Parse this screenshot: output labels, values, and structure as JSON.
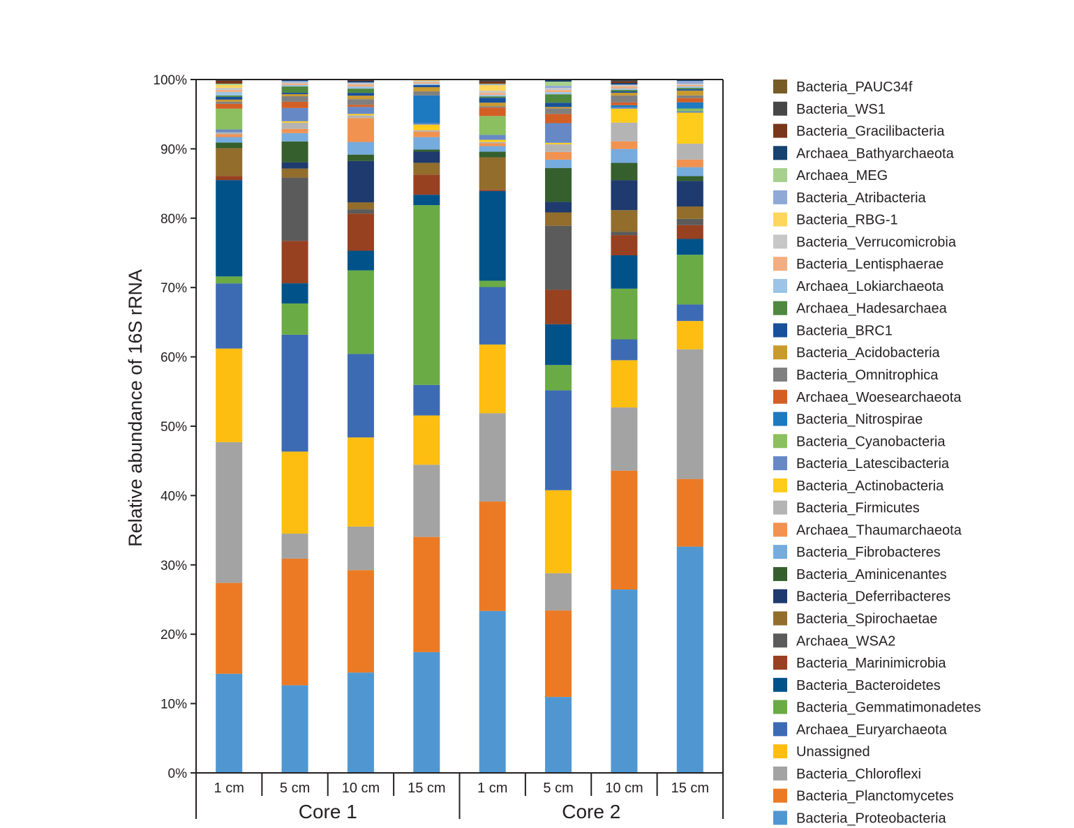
{
  "chart_data": {
    "type": "bar",
    "stacked": true,
    "normalized_percent": true,
    "title": "",
    "xlabel": "",
    "ylabel": "Relative abundance of 16S rRNA",
    "ylim": [
      0,
      100
    ],
    "yticks": [
      "0%",
      "10%",
      "20%",
      "30%",
      "40%",
      "50%",
      "60%",
      "70%",
      "80%",
      "90%",
      "100%"
    ],
    "grid": false,
    "legend_position": "right",
    "groups": [
      {
        "name": "Core 1",
        "categories": [
          "1 cm",
          "5 cm",
          "10 cm",
          "15 cm"
        ]
      },
      {
        "name": "Core 2",
        "categories": [
          "1 cm",
          "5 cm",
          "10 cm",
          "15 cm"
        ]
      }
    ],
    "categories": [
      "Core 1 1 cm",
      "Core 1 5 cm",
      "Core 1 10 cm",
      "Core 1 15 cm",
      "Core 2 1 cm",
      "Core 2 5 cm",
      "Core 2 10 cm",
      "Core 2 15 cm"
    ],
    "series": [
      {
        "name": "Bacteria_Proteobacteria",
        "color": "#5097d2",
        "values": [
          14.3,
          12.6,
          14.3,
          17.4,
          23.1,
          10.8,
          26.4,
          32.8
        ]
      },
      {
        "name": "Bacteria_Planctomycetes",
        "color": "#ec7a24",
        "values": [
          13.1,
          18.2,
          14.6,
          16.6,
          15.6,
          12.3,
          17.1,
          9.8
        ]
      },
      {
        "name": "Bacteria_Chloroflexi",
        "color": "#a3a3a3",
        "values": [
          20.3,
          3.6,
          6.2,
          10.4,
          12.6,
          5.3,
          9.1,
          18.8
        ]
      },
      {
        "name": "Unassigned",
        "color": "#fdbe11",
        "values": [
          13.5,
          11.8,
          12.7,
          7.1,
          9.8,
          11.8,
          6.8,
          4.1
        ]
      },
      {
        "name": "Archaea_Euryarchaeota",
        "color": "#3d6bb3",
        "values": [
          9.4,
          16.8,
          11.9,
          4.4,
          8.2,
          14.2,
          3.0,
          2.4
        ]
      },
      {
        "name": "Bacteria_Gemmatimonadetes",
        "color": "#6aab45",
        "values": [
          1.0,
          4.5,
          11.9,
          25.9,
          0.9,
          3.6,
          7.3,
          7.2
        ]
      },
      {
        "name": "Bacteria_Bacteroidetes",
        "color": "#015289",
        "values": [
          13.9,
          2.9,
          2.8,
          1.5,
          12.8,
          5.8,
          4.8,
          2.3
        ]
      },
      {
        "name": "Bacteria_Marinimicrobia",
        "color": "#974121",
        "values": [
          0.6,
          6.1,
          5.3,
          2.9,
          0.2,
          4.9,
          2.9,
          2.0
        ]
      },
      {
        "name": "Archaea_WSA2",
        "color": "#5b5b5b",
        "values": [
          0.0,
          9.1,
          0.6,
          0.0,
          0.0,
          9.1,
          0.5,
          0.9
        ]
      },
      {
        "name": "Bacteria_Spirochaetae",
        "color": "#926d2c",
        "values": [
          4.0,
          1.3,
          1.0,
          1.7,
          4.6,
          1.9,
          3.1,
          1.8
        ]
      },
      {
        "name": "Bacteria_Deferribacteres",
        "color": "#1e3a6e",
        "values": [
          0.0,
          0.9,
          5.9,
          1.6,
          0.0,
          1.5,
          4.3,
          3.7
        ]
      },
      {
        "name": "Bacteria_Aminicenantes",
        "color": "#355f2c",
        "values": [
          0.8,
          3.0,
          0.9,
          0.3,
          0.8,
          4.8,
          2.5,
          0.7
        ]
      },
      {
        "name": "Bacteria_Fibrobacteres",
        "color": "#76abdd",
        "values": [
          0.8,
          1.2,
          1.8,
          1.8,
          0.8,
          1.2,
          2.0,
          1.3
        ]
      },
      {
        "name": "Archaea_Thaumarchaeota",
        "color": "#f29250",
        "values": [
          0.4,
          0.6,
          3.4,
          0.8,
          0.4,
          1.1,
          1.1,
          1.1
        ]
      },
      {
        "name": "Bacteria_Firmicutes",
        "color": "#b4b4b4",
        "values": [
          0.3,
          0.9,
          0.4,
          0.2,
          0.2,
          1.1,
          2.7,
          2.3
        ]
      },
      {
        "name": "Bacteria_Actinobacteria",
        "color": "#fecc1a",
        "values": [
          0.0,
          0.2,
          0.2,
          0.8,
          0.3,
          0.2,
          2.0,
          4.5
        ]
      },
      {
        "name": "Bacteria_Latescibacteria",
        "color": "#6689c6",
        "values": [
          0.4,
          1.9,
          1.0,
          0.2,
          0.7,
          2.8,
          0.2,
          0.2
        ]
      },
      {
        "name": "Bacteria_Cyanobacteria",
        "color": "#8bbf5f",
        "values": [
          3.0,
          0.0,
          0.0,
          0.0,
          2.7,
          0.0,
          0.0,
          0.4
        ]
      },
      {
        "name": "Bacteria_Nitrospirae",
        "color": "#1d79c0",
        "values": [
          0.0,
          0.0,
          0.0,
          4.0,
          0.0,
          0.0,
          0.3,
          0.9
        ]
      },
      {
        "name": "Archaea_Woesearchaeota",
        "color": "#d45f25",
        "values": [
          0.7,
          0.9,
          0.3,
          0.0,
          1.2,
          1.3,
          0.4,
          0.6
        ]
      },
      {
        "name": "Bacteria_Omnitrophica",
        "color": "#808080",
        "values": [
          0.3,
          0.8,
          0.8,
          0.6,
          0.2,
          0.8,
          1.0,
          0.4
        ]
      },
      {
        "name": "Bacteria_Acidobacteria",
        "color": "#c99a2e",
        "values": [
          0.3,
          0.3,
          0.5,
          0.6,
          0.5,
          0.2,
          0.4,
          0.7
        ]
      },
      {
        "name": "Bacteria_BRC1",
        "color": "#18509a",
        "values": [
          0.4,
          0.2,
          0.4,
          0.3,
          0.7,
          0.6,
          0.2,
          0.2
        ]
      },
      {
        "name": "Archaea_Hadesarchaea",
        "color": "#4f883f",
        "values": [
          0.2,
          0.9,
          0.6,
          0.0,
          0.2,
          1.2,
          0.2,
          0.2
        ]
      },
      {
        "name": "Archaea_Lokiarchaeota",
        "color": "#9cc4e6",
        "values": [
          0.5,
          0.2,
          0.3,
          0.2,
          0.2,
          0.3,
          0.2,
          0.2
        ]
      },
      {
        "name": "Bacteria_Lentisphaerae",
        "color": "#f2ae80",
        "values": [
          0.3,
          0.2,
          0.3,
          0.2,
          0.3,
          0.3,
          0.3,
          0.2
        ]
      },
      {
        "name": "Bacteria_Verrucomicrobia",
        "color": "#c7c7c7",
        "values": [
          0.3,
          0.2,
          0.2,
          0.2,
          0.3,
          0.3,
          0.2,
          0.2
        ]
      },
      {
        "name": "Bacteria_RBG-1",
        "color": "#fed65e",
        "values": [
          0.4,
          0.0,
          0.0,
          0.2,
          0.8,
          0.0,
          0.0,
          0.0
        ]
      },
      {
        "name": "Bacteria_Atribacteria",
        "color": "#8fa8d8",
        "values": [
          0.0,
          0.2,
          0.1,
          0.0,
          0.1,
          0.3,
          0.1,
          0.4
        ]
      },
      {
        "name": "Archaea_MEG",
        "color": "#a8d08d",
        "values": [
          0.2,
          0.0,
          0.0,
          0.0,
          0.1,
          0.6,
          0.0,
          0.0
        ]
      },
      {
        "name": "Archaea_Bathyarchaeota",
        "color": "#15426e",
        "values": [
          0.0,
          0.2,
          0.2,
          0.0,
          0.0,
          0.3,
          0.2,
          0.2
        ]
      },
      {
        "name": "Bacteria_Gracilibacteria",
        "color": "#7a361b",
        "values": [
          0.4,
          0.0,
          0.1,
          0.0,
          0.3,
          0.0,
          0.2,
          0.0
        ]
      },
      {
        "name": "Bacteria_WS1",
        "color": "#474747",
        "values": [
          0.1,
          0.0,
          0.1,
          0.0,
          0.2,
          0.0,
          0.2,
          0.0
        ]
      },
      {
        "name": "Bacteria_PAUC34f",
        "color": "#785c27",
        "values": [
          0.1,
          0.0,
          0.0,
          0.0,
          0.1,
          0.0,
          0.1,
          0.0
        ]
      }
    ]
  }
}
